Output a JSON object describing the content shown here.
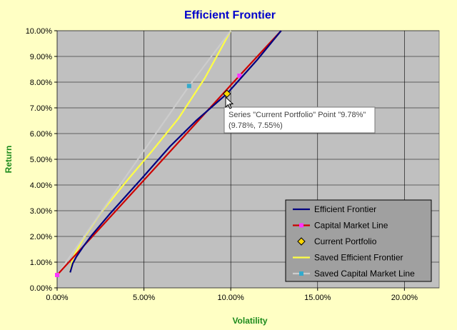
{
  "chart_data": {
    "type": "line",
    "title": "Efficient Frontier",
    "xlabel": "Volatility",
    "ylabel": "Return",
    "xlim": [
      0,
      22
    ],
    "ylim": [
      0,
      10
    ],
    "x_ticks": [
      "0.00%",
      "5.00%",
      "10.00%",
      "15.00%",
      "20.00%"
    ],
    "x_tick_values": [
      0,
      5,
      10,
      15,
      20
    ],
    "y_ticks": [
      "0.00%",
      "1.00%",
      "2.00%",
      "3.00%",
      "4.00%",
      "5.00%",
      "6.00%",
      "7.00%",
      "8.00%",
      "9.00%",
      "10.00%"
    ],
    "y_tick_values": [
      0,
      1,
      2,
      3,
      4,
      5,
      6,
      7,
      8,
      9,
      10
    ],
    "grid": true,
    "legend_position": "bottom-right",
    "series": [
      {
        "name": "Efficient Frontier",
        "color": "#000080",
        "marker": "none",
        "x": [
          0.75,
          0.9,
          1.1,
          1.5,
          2.0,
          3.0,
          4.0,
          5.0,
          6.5,
          8.0,
          9.78,
          11.5,
          12.9
        ],
        "y": [
          0.6,
          0.95,
          1.2,
          1.6,
          2.05,
          2.85,
          3.6,
          4.35,
          5.5,
          6.5,
          7.55,
          8.85,
          10.0
        ]
      },
      {
        "name": "Capital Market Line",
        "color": "#cc0000",
        "marker": "dot",
        "marker_color": "#ff33ff",
        "x": [
          0,
          10.5,
          12.9
        ],
        "y": [
          0.5,
          8.25,
          10.0
        ]
      },
      {
        "name": "Current Portfolio",
        "color": "#000000",
        "marker": "diamond",
        "marker_color": "#ffd700",
        "x": [
          9.78
        ],
        "y": [
          7.55
        ]
      },
      {
        "name": "Saved Efficient Frontier",
        "color": "#ffff44",
        "marker": "none",
        "x": [
          0.75,
          0.85,
          1.0,
          1.5,
          2.5,
          4.0,
          5.5,
          7.0,
          8.5,
          10.0
        ],
        "y": [
          0.6,
          1.0,
          1.3,
          1.9,
          2.9,
          4.15,
          5.35,
          6.6,
          8.15,
          10.0
        ]
      },
      {
        "name": "Saved Capital Market Line",
        "color": "#cccccc",
        "marker": "dot",
        "marker_color": "#33aacc",
        "x": [
          0,
          7.6,
          10.0
        ],
        "y": [
          0.5,
          7.85,
          10.0
        ]
      }
    ],
    "tooltip": {
      "line1": "Series \"Current Portfolio\" Point \"9.78%\"",
      "line2": "(9.78%, 7.55%)"
    }
  }
}
